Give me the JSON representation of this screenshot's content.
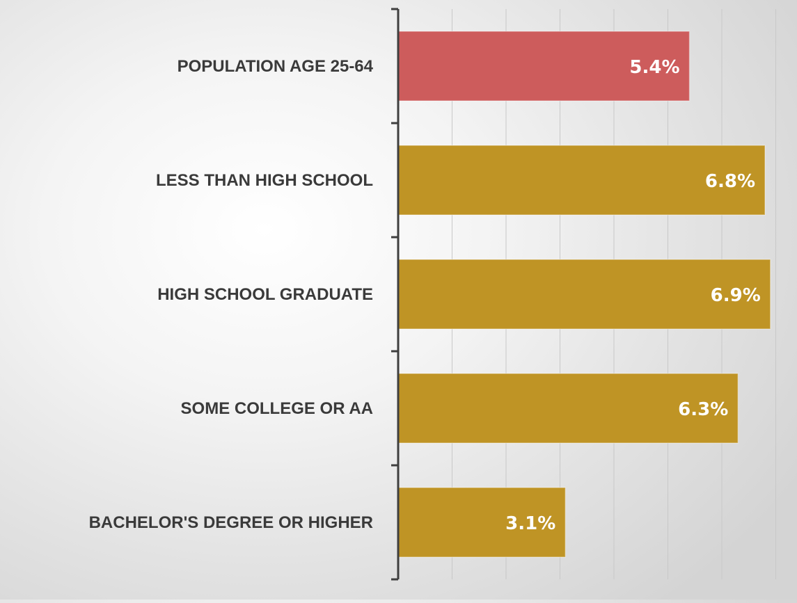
{
  "chart_data": {
    "type": "bar",
    "orientation": "horizontal",
    "categories": [
      "POPULATION AGE 25-64",
      "LESS THAN HIGH SCHOOL",
      "HIGH SCHOOL GRADUATE",
      "SOME COLLEGE OR AA",
      "BACHELOR'S DEGREE OR HIGHER"
    ],
    "values": [
      5.4,
      6.8,
      6.9,
      6.3,
      3.1
    ],
    "value_labels": [
      "5.4%",
      "6.8%",
      "6.9%",
      "6.3%",
      "3.1%"
    ],
    "bar_colors": [
      "#cd5c5c",
      "#bf9425",
      "#bf9425",
      "#bf9425",
      "#bf9425"
    ],
    "xlim": [
      0,
      7
    ],
    "grid": true,
    "legend": "none",
    "title": "",
    "xlabel": "",
    "ylabel": ""
  },
  "colors": {
    "highlight": "#cd5c5c",
    "primary": "#bf9425",
    "axis": "#3f3f3f",
    "grid": "#c8c8c8",
    "label_text": "#3a3a3a",
    "value_text": "#ffffff"
  }
}
